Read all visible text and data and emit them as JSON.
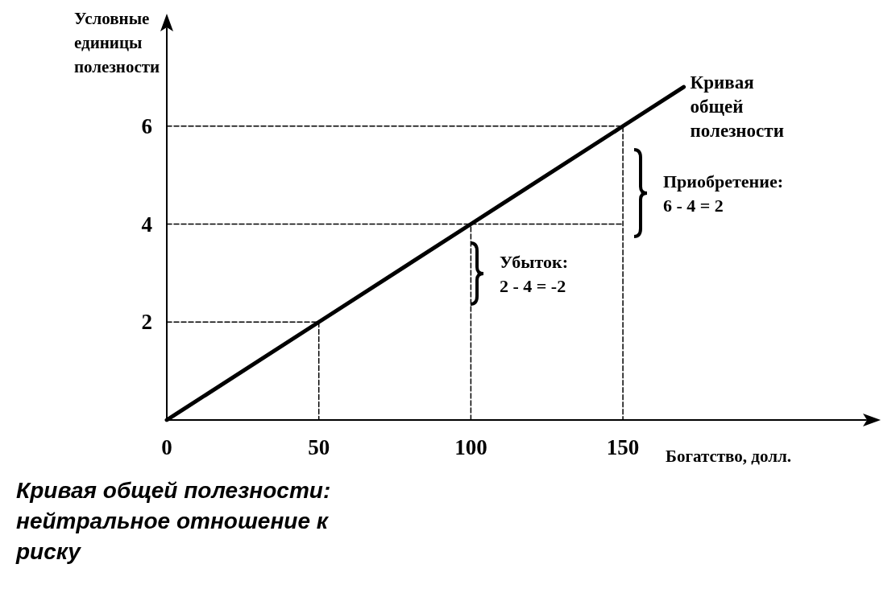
{
  "chart_data": {
    "type": "line",
    "title": "Кривая общей полезности: нейтральное отношение к риску",
    "xlabel": "Богатство, долл.",
    "ylabel": "Условные единицы полезности",
    "xlim": [
      0,
      230
    ],
    "ylim": [
      0,
      8
    ],
    "xticks": [
      0,
      50,
      100,
      150
    ],
    "yticks": [
      2,
      4,
      6
    ],
    "grid": false,
    "legend": false,
    "marker": "none",
    "line_style": "solid",
    "series": [
      {
        "name": "Кривая общей полезности",
        "color": "#000000",
        "x": [
          0,
          50,
          100,
          150,
          170
        ],
        "values": [
          0,
          2,
          4,
          6,
          6.8
        ]
      },
      {
        "color": "#000000",
        "line_style": "dashed",
        "x": [
          0,
          150,
          150
        ],
        "values": [
          6,
          6,
          0
        ]
      },
      {
        "color": "#000000",
        "line_style": "dashed",
        "x": [
          0,
          150
        ],
        "values": [
          4,
          4
        ]
      },
      {
        "color": "#000000",
        "line_style": "dashed",
        "x": [
          100,
          100
        ],
        "values": [
          0,
          4
        ]
      },
      {
        "color": "#000000",
        "line_style": "dashed",
        "x": [
          0,
          50,
          50
        ],
        "values": [
          2,
          2,
          0
        ]
      }
    ],
    "annotations": [
      "Приобретение:\n6 - 4 = 2",
      "Убыток:\n2 - 4 = -2"
    ]
  }
}
